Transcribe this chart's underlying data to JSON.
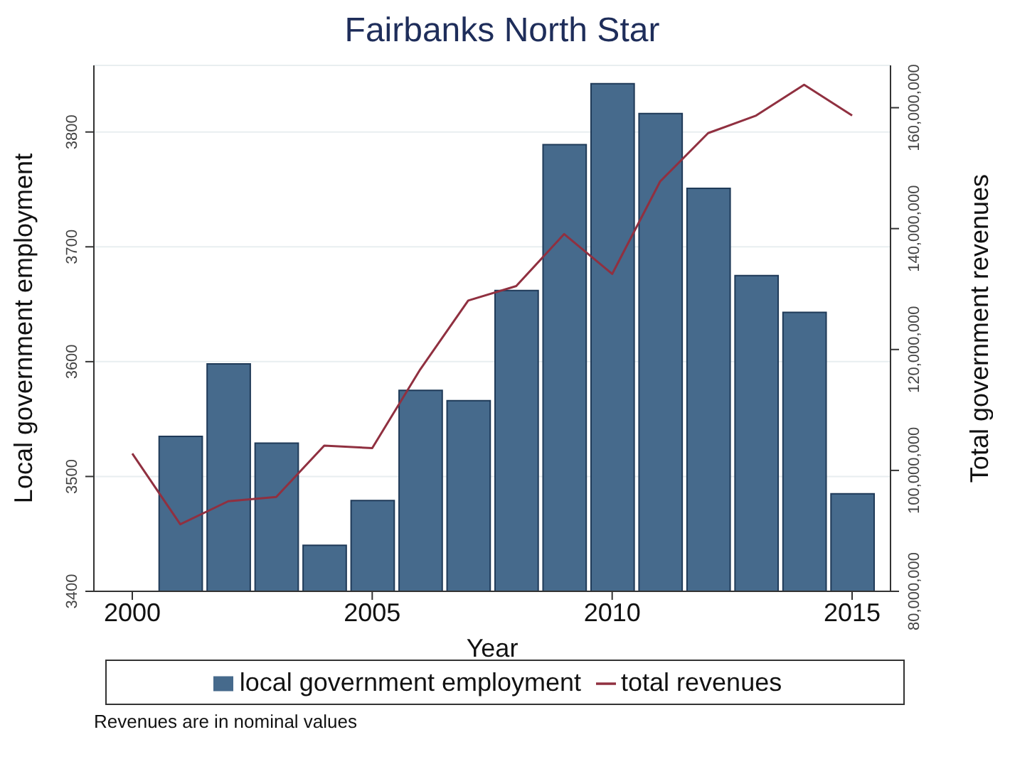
{
  "chart_data": {
    "type": "bar",
    "title": "Fairbanks North Star",
    "xlabel": "Year",
    "ylabel": "Local government employment",
    "y2label": "Total government revenues",
    "series": [
      {
        "name": "local government employment",
        "color": "#466a8c",
        "x": [
          2001,
          2002,
          2003,
          2004,
          2005,
          2006,
          2007,
          2008,
          2009,
          2010,
          2011,
          2012,
          2013,
          2014,
          2015
        ],
        "values": [
          3535,
          3598,
          3529,
          3440,
          3479,
          3575,
          3566,
          3662,
          3789,
          3842,
          3816,
          3751,
          3675,
          3643,
          3485
        ]
      },
      {
        "name": "total revenues",
        "type": "line",
        "axis": "y2",
        "color": "#903040",
        "x": [
          2000,
          2001,
          2002,
          2003,
          2004,
          2005,
          2006,
          2007,
          2008,
          2009,
          2010,
          2011,
          2012,
          2013,
          2014,
          2015
        ],
        "values": [
          102800000,
          91100000,
          94900000,
          95600000,
          104100000,
          103700000,
          116700000,
          128100000,
          130500000,
          139100000,
          132500000,
          147800000,
          155800000,
          158700000,
          163800000,
          158700000
        ]
      }
    ],
    "xlim": [
      1999.2,
      2015.8
    ],
    "xticks": [
      2000,
      2005,
      2010,
      2015
    ],
    "ylim": [
      3400,
      3858
    ],
    "yticks": [
      3400,
      3500,
      3600,
      3700,
      3800
    ],
    "y2lim": [
      80000000,
      167000000
    ],
    "y2ticks": [
      {
        "value": 80000000,
        "label": "80,000,000"
      },
      {
        "value": 100000000,
        "label": "100,000,000"
      },
      {
        "value": 120000000,
        "label": "120,000,000"
      },
      {
        "value": 140000000,
        "label": "140,000,000"
      },
      {
        "value": 160000000,
        "label": "160,000,000"
      }
    ],
    "grid": "y",
    "legend": "bottom",
    "marker": "none",
    "line_style": "solid",
    "annotations": [
      "Revenues are in nominal values"
    ]
  }
}
